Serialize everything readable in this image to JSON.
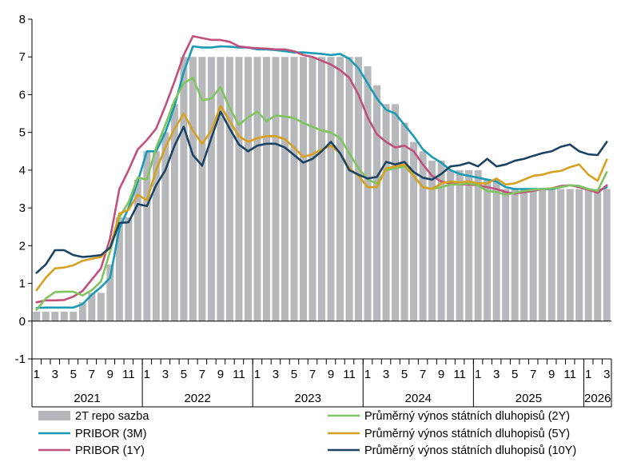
{
  "chart_data": {
    "type": "bar+line",
    "title": "",
    "xlabel": "",
    "ylabel": "",
    "ylim": [
      -1,
      8
    ],
    "yticks": [
      "-1",
      "0",
      "1",
      "2",
      "3",
      "4",
      "5",
      "6",
      "7",
      "8"
    ],
    "x_start": "2021-01",
    "month_tick_labels": [
      "1",
      "3",
      "5",
      "7",
      "9",
      "11",
      "1",
      "3",
      "5",
      "7",
      "9",
      "11",
      "1",
      "3",
      "5",
      "7",
      "9",
      "11",
      "1",
      "3",
      "5",
      "7",
      "9",
      "11",
      "1",
      "3",
      "5",
      "7",
      "9",
      "11",
      "1",
      "3"
    ],
    "year_labels": [
      "2021",
      "2022",
      "2023",
      "2024",
      "2025",
      "2026"
    ],
    "grid": false,
    "legend_position": "bottom",
    "series": [
      {
        "name": "2T repo sazba",
        "kind": "bar",
        "color": "#b7b8bc",
        "values": [
          0.25,
          0.25,
          0.25,
          0.25,
          0.25,
          0.5,
          0.75,
          0.75,
          1.5,
          2.75,
          2.75,
          3.75,
          4.5,
          4.5,
          5.0,
          5.75,
          7.0,
          7.0,
          7.0,
          7.0,
          7.0,
          7.0,
          7.0,
          7.0,
          7.0,
          7.0,
          7.0,
          7.0,
          7.0,
          7.0,
          7.0,
          7.0,
          7.0,
          7.0,
          7.0,
          7.0,
          6.75,
          6.25,
          5.75,
          5.75,
          5.25,
          4.75,
          4.5,
          4.25,
          4.25,
          4.0,
          4.0,
          4.0,
          4.0,
          3.75,
          3.75,
          3.5,
          3.5,
          3.5,
          3.5,
          3.5,
          3.5,
          3.5,
          3.5,
          3.5,
          3.5,
          3.5,
          3.5
        ]
      },
      {
        "name": "PRIBOR (3M)",
        "kind": "line",
        "color": "#1a9bb5",
        "values": [
          0.35,
          0.36,
          0.36,
          0.36,
          0.36,
          0.45,
          0.7,
          0.9,
          1.15,
          2.45,
          3.0,
          3.7,
          4.5,
          4.5,
          5.0,
          5.7,
          6.6,
          7.28,
          7.25,
          7.25,
          7.28,
          7.27,
          7.25,
          7.25,
          7.2,
          7.2,
          7.18,
          7.15,
          7.12,
          7.12,
          7.1,
          7.08,
          7.05,
          7.08,
          6.95,
          6.7,
          6.3,
          5.9,
          5.6,
          5.5,
          5.2,
          4.9,
          4.55,
          4.35,
          4.2,
          4.0,
          3.9,
          3.85,
          3.8,
          3.75,
          3.7,
          3.55,
          3.5,
          3.5,
          3.5,
          3.5,
          3.5,
          3.55,
          3.6,
          3.58,
          3.5,
          3.45,
          3.55
        ]
      },
      {
        "name": "PRIBOR (1Y)",
        "kind": "line",
        "color": "#c0507c",
        "values": [
          0.5,
          0.55,
          0.55,
          0.56,
          0.65,
          0.8,
          1.1,
          1.4,
          2.2,
          3.5,
          4.0,
          4.55,
          4.8,
          5.1,
          5.7,
          6.35,
          7.05,
          7.55,
          7.5,
          7.45,
          7.45,
          7.4,
          7.28,
          7.25,
          7.23,
          7.22,
          7.2,
          7.2,
          7.15,
          7.05,
          7.0,
          6.9,
          6.8,
          6.65,
          6.45,
          6.0,
          5.4,
          4.95,
          4.75,
          4.6,
          4.65,
          4.5,
          4.15,
          3.85,
          3.7,
          3.65,
          3.62,
          3.62,
          3.6,
          3.55,
          3.5,
          3.42,
          3.38,
          3.42,
          3.45,
          3.5,
          3.52,
          3.58,
          3.6,
          3.55,
          3.48,
          3.4,
          3.6
        ]
      },
      {
        "name": "Průměrný výnos státních dluhopisů (2Y)",
        "kind": "line",
        "color": "#7fc45e",
        "values": [
          0.3,
          0.6,
          0.77,
          0.78,
          0.78,
          0.68,
          0.82,
          1.05,
          1.85,
          2.75,
          3.15,
          3.8,
          3.75,
          4.6,
          5.2,
          5.85,
          6.3,
          6.45,
          5.85,
          5.9,
          6.2,
          5.65,
          5.2,
          5.4,
          5.55,
          5.3,
          5.45,
          5.42,
          5.38,
          5.25,
          5.15,
          5.05,
          5.0,
          4.85,
          4.45,
          4.05,
          3.75,
          3.65,
          4.0,
          4.05,
          4.1,
          3.85,
          3.55,
          3.5,
          3.55,
          3.62,
          3.62,
          3.65,
          3.6,
          3.45,
          3.42,
          3.35,
          3.4,
          3.45,
          3.48,
          3.5,
          3.52,
          3.55,
          3.6,
          3.58,
          3.5,
          3.45,
          3.95
        ]
      },
      {
        "name": "Průměrný výnos státních dluhopisů (5Y)",
        "kind": "line",
        "color": "#d6a021",
        "values": [
          0.82,
          1.15,
          1.4,
          1.42,
          1.48,
          1.6,
          1.65,
          1.7,
          1.95,
          2.85,
          2.95,
          3.35,
          3.2,
          4.0,
          4.6,
          5.1,
          5.5,
          5.05,
          4.7,
          5.05,
          5.7,
          5.3,
          4.9,
          4.75,
          4.85,
          4.9,
          4.9,
          4.82,
          4.6,
          4.35,
          4.42,
          4.55,
          4.65,
          4.45,
          4.05,
          3.85,
          3.55,
          3.55,
          4.05,
          4.1,
          4.15,
          3.85,
          3.55,
          3.5,
          3.65,
          3.7,
          3.68,
          3.7,
          3.65,
          3.65,
          3.78,
          3.62,
          3.65,
          3.75,
          3.85,
          3.88,
          3.95,
          3.98,
          4.08,
          4.15,
          3.88,
          3.72,
          4.28
        ]
      },
      {
        "name": "Průměrný výnos státních dluhopisů (10Y)",
        "kind": "line",
        "color": "#1b4464",
        "values": [
          1.28,
          1.5,
          1.88,
          1.88,
          1.75,
          1.7,
          1.72,
          1.75,
          1.95,
          2.6,
          2.62,
          3.1,
          3.05,
          3.6,
          4.0,
          4.65,
          5.15,
          4.4,
          4.12,
          4.85,
          5.55,
          5.1,
          4.68,
          4.5,
          4.65,
          4.7,
          4.7,
          4.6,
          4.4,
          4.2,
          4.3,
          4.5,
          4.75,
          4.45,
          4.0,
          3.88,
          3.78,
          3.82,
          4.22,
          4.15,
          4.22,
          3.95,
          3.8,
          3.75,
          3.9,
          4.1,
          4.13,
          4.2,
          4.1,
          4.3,
          4.1,
          4.15,
          4.25,
          4.3,
          4.38,
          4.45,
          4.5,
          4.62,
          4.68,
          4.5,
          4.42,
          4.4,
          4.75
        ]
      }
    ]
  }
}
